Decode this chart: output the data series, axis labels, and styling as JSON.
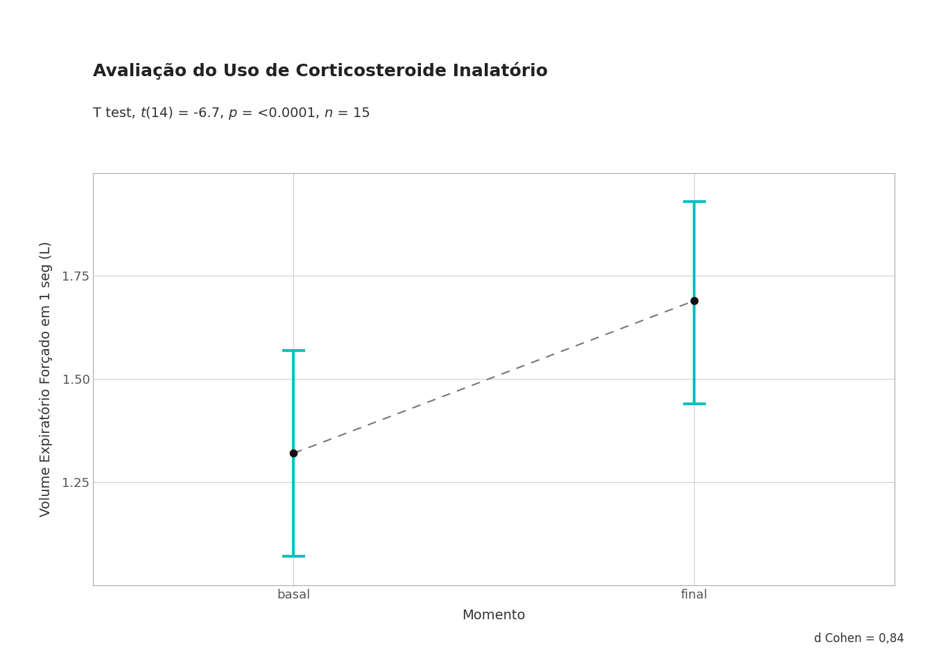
{
  "title": "Avaliação do Uso de Corticosteroide Inalatório",
  "subtitle_parts": {
    "prefix": "T test, ",
    "t_italic": "t",
    "t_val": "(14) = -6.7, ",
    "p_italic": "p",
    "p_val": " = <0.0001, ",
    "n_italic": "n",
    "n_val": " = 15"
  },
  "xlabel": "Momento",
  "ylabel": "Volume Expiratório Forçado em 1 seg (L)",
  "categories": [
    "basal",
    "final"
  ],
  "means": [
    1.32,
    1.69
  ],
  "ci_upper": [
    1.57,
    1.93
  ],
  "ci_lower": [
    1.07,
    1.44
  ],
  "error_color": "#00BFBF",
  "dot_color": "#111111",
  "line_color": "#777777",
  "background_color": "#ffffff",
  "plot_background": "#ffffff",
  "grid_color": "#d0d0d0",
  "yticks": [
    1.25,
    1.5,
    1.75
  ],
  "ylim": [
    1.0,
    2.0
  ],
  "xlim": [
    -0.5,
    1.5
  ],
  "x_positions": [
    0,
    1
  ],
  "cohen_text": "d Cohen = 0,84",
  "title_fontsize": 18,
  "subtitle_fontsize": 14,
  "axis_label_fontsize": 14,
  "tick_label_fontsize": 13,
  "annotation_fontsize": 12,
  "error_linewidth": 2.8,
  "dot_size": 55
}
